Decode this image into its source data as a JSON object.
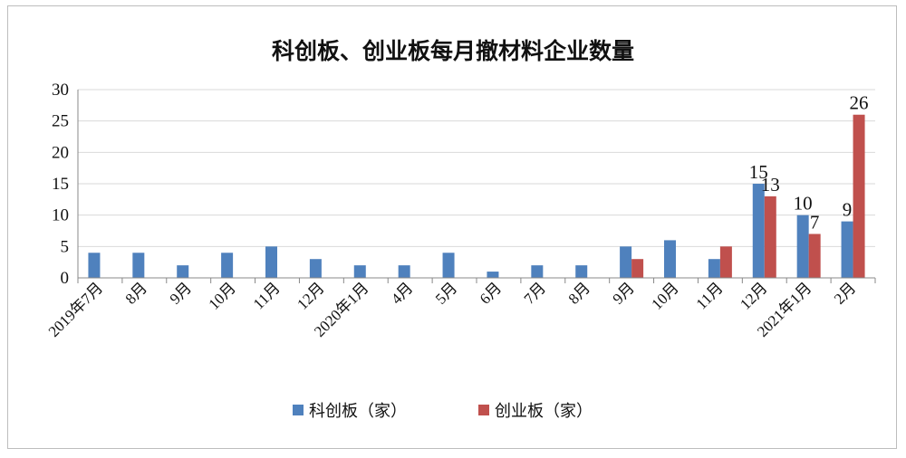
{
  "chart_data": {
    "type": "bar",
    "title": "科创板、创业板每月撤材料企业数量",
    "categories": [
      "2019年7月",
      "8月",
      "9月",
      "10月",
      "11月",
      "12月",
      "2020年1月",
      "4月",
      "5月",
      "6月",
      "7月",
      "8月",
      "9月",
      "10月",
      "11月",
      "12月",
      "2021年1月",
      "2月"
    ],
    "series": [
      {
        "name": "科创板（家）",
        "color": "#4f81bd",
        "values": [
          4,
          4,
          2,
          4,
          5,
          3,
          2,
          2,
          4,
          1,
          2,
          2,
          5,
          6,
          3,
          15,
          10,
          9
        ]
      },
      {
        "name": "创业板（家）",
        "color": "#c0504d",
        "values": [
          0,
          0,
          0,
          0,
          0,
          0,
          0,
          0,
          0,
          0,
          0,
          0,
          3,
          0,
          5,
          13,
          7,
          26
        ]
      }
    ],
    "data_labels": [
      {
        "series": 0,
        "index": 15,
        "text": "15"
      },
      {
        "series": 1,
        "index": 15,
        "text": "13"
      },
      {
        "series": 0,
        "index": 16,
        "text": "10"
      },
      {
        "series": 1,
        "index": 16,
        "text": "7"
      },
      {
        "series": 0,
        "index": 17,
        "text": "9"
      },
      {
        "series": 1,
        "index": 17,
        "text": "26"
      }
    ],
    "ylim": [
      0,
      30
    ],
    "yticks": [
      "0",
      "5",
      "10",
      "15",
      "20",
      "25",
      "30"
    ],
    "grid": true,
    "legend_position": "bottom"
  }
}
